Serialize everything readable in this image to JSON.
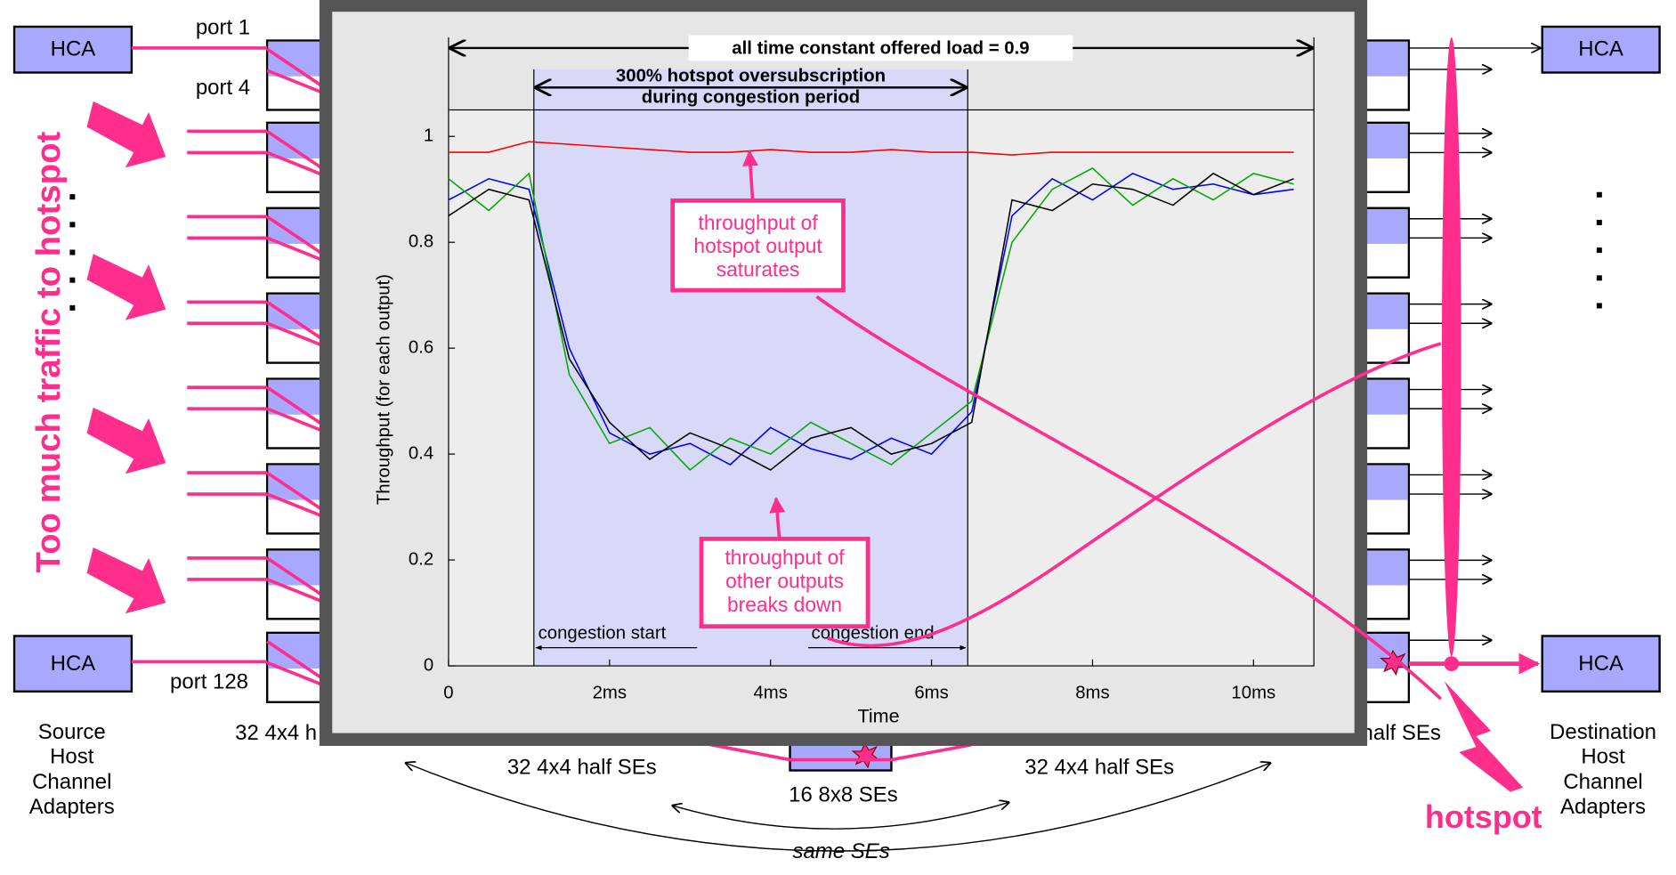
{
  "diagram": {
    "hca": [
      "HCA",
      "HCA",
      "HCA",
      "HCA"
    ],
    "port_top": "port 1",
    "port_second": "port 4",
    "port_bottom": "port 128",
    "source": [
      "Source",
      "Host",
      "Channel",
      "Adapters"
    ],
    "destination": [
      "Destination",
      "Host",
      "Channel",
      "Adapters"
    ],
    "left_stage": "32 4x4 h",
    "mid_left_stage": "32 4x4 half SEs",
    "middle_stage": "16 8x8 SEs",
    "mid_right_stage": "32 4x4 half SEs",
    "right_stage": "half SEs",
    "same": "same SEs",
    "traffic": "Too much traffic to hotspot",
    "hotspot": "hotspot"
  },
  "chart_data": {
    "type": "line",
    "x_label": "Time",
    "y_label": "Throughput  (for each output)",
    "load_label": "all time constant offered load = 0.9",
    "oversubscription_label": [
      "300% hotspot oversubscription",
      "during congestion period"
    ],
    "congestion": {
      "start": 1.06,
      "end": 6.45,
      "start_label": "congestion start",
      "end_label": "congestion end"
    },
    "hotspot_note": [
      "throughput of",
      "hotspot output",
      "saturates"
    ],
    "others_note": [
      "throughput of",
      "other outputs",
      "breaks down"
    ],
    "xlim": [
      0,
      10.75
    ],
    "ylim": [
      0,
      1.05
    ],
    "xticks": [
      0,
      {
        "value": 2,
        "label": "2ms"
      },
      {
        "value": 4,
        "label": "4ms"
      },
      {
        "value": 6,
        "label": "6ms"
      },
      {
        "value": 8,
        "label": "8ms"
      },
      {
        "value": 10,
        "label": "10ms"
      }
    ],
    "yticks": [
      0,
      0.2,
      0.4,
      0.6,
      0.8,
      1
    ],
    "x": [
      0,
      0.5,
      1,
      1.5,
      2,
      2.5,
      3,
      3.5,
      4,
      4.5,
      5,
      5.5,
      6,
      6.5,
      7,
      7.5,
      8,
      8.5,
      9,
      9.5,
      10,
      10.5
    ],
    "series": [
      {
        "color": "#0000ff",
        "values": [
          0.88,
          0.92,
          0.9,
          0.6,
          0.44,
          0.4,
          0.42,
          0.38,
          0.45,
          0.41,
          0.39,
          0.43,
          0.4,
          0.48,
          0.85,
          0.92,
          0.88,
          0.93,
          0.9,
          0.91,
          0.89,
          0.9
        ]
      },
      {
        "color": "#00aa00",
        "values": [
          0.92,
          0.86,
          0.93,
          0.55,
          0.42,
          0.45,
          0.37,
          0.43,
          0.4,
          0.46,
          0.42,
          0.38,
          0.44,
          0.5,
          0.8,
          0.9,
          0.94,
          0.87,
          0.92,
          0.88,
          0.93,
          0.91
        ]
      },
      {
        "color": "#000000",
        "values": [
          0.85,
          0.9,
          0.88,
          0.58,
          0.46,
          0.39,
          0.44,
          0.41,
          0.37,
          0.43,
          0.45,
          0.4,
          0.42,
          0.46,
          0.88,
          0.86,
          0.91,
          0.9,
          0.87,
          0.93,
          0.89,
          0.92
        ]
      },
      {
        "color": "#ff0000",
        "values": [
          0.97,
          0.97,
          0.99,
          0.985,
          0.98,
          0.975,
          0.97,
          0.97,
          0.975,
          0.97,
          0.97,
          0.975,
          0.97,
          0.97,
          0.965,
          0.97,
          0.97,
          0.97,
          0.97,
          0.97,
          0.97,
          0.97
        ]
      }
    ]
  }
}
